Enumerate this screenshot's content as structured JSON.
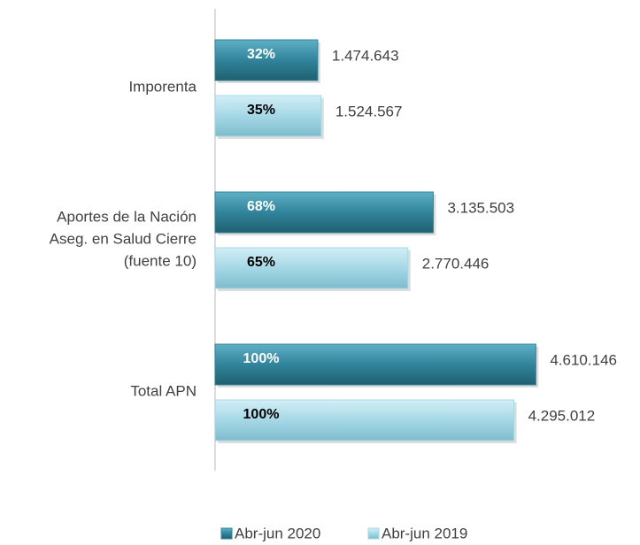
{
  "chart_data": {
    "type": "bar",
    "orientation": "horizontal",
    "categories": [
      "Imporenta",
      "Aportes de la Nación\nAseg. en Salud Cierre\n(fuente 10)",
      "Total APN"
    ],
    "series": [
      {
        "name": "Abr-jun 2020",
        "color": "#31849b",
        "values": [
          1474643,
          3135503,
          4610146
        ],
        "value_labels": [
          "1.474.643",
          "3.135.503",
          "4.610.146"
        ],
        "share_labels": [
          "32%",
          "68%",
          "100%"
        ]
      },
      {
        "name": "Abr-jun 2019",
        "color": "#a5d8e6",
        "values": [
          1524567,
          2770446,
          4295012
        ],
        "value_labels": [
          "1.524.567",
          "2.770.446",
          "4.295.012"
        ],
        "share_labels": [
          "35%",
          "65%",
          "100%"
        ]
      }
    ],
    "xlim": [
      0,
      5000000
    ],
    "legend": "bottom"
  }
}
